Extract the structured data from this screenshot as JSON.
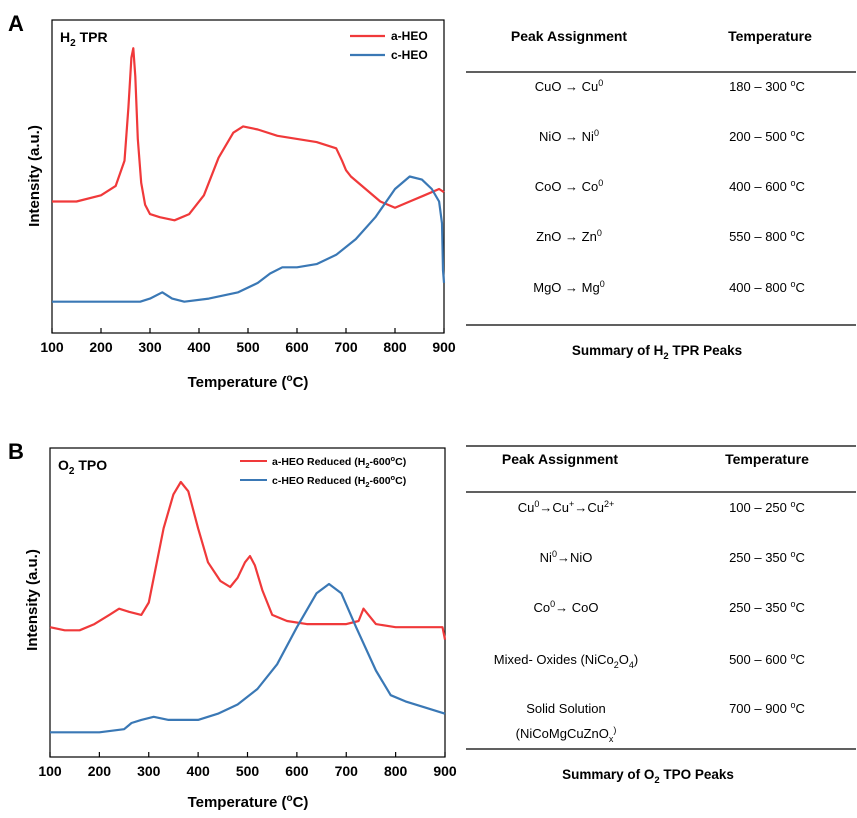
{
  "panels": {
    "A": {
      "letter": "A",
      "plot_title": {
        "main": "H",
        "sub": "2",
        "rest": " TPR"
      },
      "caption": {
        "pre": "Summary of H",
        "sub": "2",
        "post": " TPR Peaks"
      }
    },
    "B": {
      "letter": "B",
      "plot_title": {
        "main": "O",
        "sub": "2",
        "rest": " TPO"
      },
      "caption": {
        "pre": "Summary of O",
        "sub": "2",
        "post": " TPO Peaks"
      }
    }
  },
  "axes": {
    "ylabel": "Intensity (a.u.)",
    "xlabel": {
      "pre": "Temperature (",
      "sup": "o",
      "post": "C)"
    }
  },
  "tables": {
    "header": {
      "assignment": "Peak Assignment",
      "temperature": "Temperature"
    },
    "A": [
      {
        "assignment": [
          {
            "t": "CuO → Cu"
          },
          {
            "t": "0",
            "s": "sup"
          }
        ],
        "temperature": [
          {
            "t": "180 – 300 "
          },
          {
            "t": "o",
            "s": "sup"
          },
          {
            "t": "C"
          }
        ]
      },
      {
        "assignment": [
          {
            "t": "NiO → Ni"
          },
          {
            "t": "0",
            "s": "sup"
          }
        ],
        "temperature": [
          {
            "t": "200 – 500 "
          },
          {
            "t": "o",
            "s": "sup"
          },
          {
            "t": "C"
          }
        ]
      },
      {
        "assignment": [
          {
            "t": "CoO → Co"
          },
          {
            "t": "0",
            "s": "sup"
          }
        ],
        "temperature": [
          {
            "t": "400 – 600 "
          },
          {
            "t": "o",
            "s": "sup"
          },
          {
            "t": "C"
          }
        ]
      },
      {
        "assignment": [
          {
            "t": "ZnO → Zn"
          },
          {
            "t": "0",
            "s": "sup"
          }
        ],
        "temperature": [
          {
            "t": "550 – 800 "
          },
          {
            "t": "o",
            "s": "sup"
          },
          {
            "t": "C"
          }
        ]
      },
      {
        "assignment": [
          {
            "t": "MgO → Mg"
          },
          {
            "t": "0",
            "s": "sup"
          }
        ],
        "temperature": [
          {
            "t": "400 – 800 "
          },
          {
            "t": "o",
            "s": "sup"
          },
          {
            "t": "C"
          }
        ]
      }
    ],
    "B": [
      {
        "assignment": [
          {
            "t": "Cu"
          },
          {
            "t": "0",
            "s": "sup"
          },
          {
            "t": "→Cu"
          },
          {
            "t": "+",
            "s": "sup"
          },
          {
            "t": "→Cu"
          },
          {
            "t": "2+",
            "s": "sup"
          }
        ],
        "temperature": [
          {
            "t": "100 – 250 "
          },
          {
            "t": "o",
            "s": "sup"
          },
          {
            "t": "C"
          }
        ]
      },
      {
        "assignment": [
          {
            "t": "Ni"
          },
          {
            "t": "0",
            "s": "sup"
          },
          {
            "t": "→NiO"
          }
        ],
        "temperature": [
          {
            "t": "250 – 350 "
          },
          {
            "t": "o",
            "s": "sup"
          },
          {
            "t": "C"
          }
        ]
      },
      {
        "assignment": [
          {
            "t": "Co"
          },
          {
            "t": "0",
            "s": "sup"
          },
          {
            "t": "→ CoO"
          }
        ],
        "temperature": [
          {
            "t": "250 – 350 "
          },
          {
            "t": "o",
            "s": "sup"
          },
          {
            "t": "C"
          }
        ]
      },
      {
        "assignment": [
          {
            "t": "Mixed- Oxides (NiCo"
          },
          {
            "t": "2",
            "s": "sub"
          },
          {
            "t": "O"
          },
          {
            "t": "4",
            "s": "sub"
          },
          {
            "t": ")"
          }
        ],
        "temperature": [
          {
            "t": "500 – 600 "
          },
          {
            "t": "o",
            "s": "sup"
          },
          {
            "t": "C"
          }
        ]
      },
      {
        "assignment": [
          {
            "t": "Solid Solution"
          }
        ],
        "assignment2": [
          {
            "t": "(NiCoMgCuZnO"
          },
          {
            "t": "x",
            "s": "sub"
          },
          {
            "t": ")",
            "s": "sup"
          }
        ],
        "temperature": [
          {
            "t": "700 – 900 "
          },
          {
            "t": "o",
            "s": "sup"
          },
          {
            "t": "C"
          }
        ]
      }
    ]
  },
  "colors": {
    "a_series": "#f0393a",
    "c_series": "#3a78b5"
  },
  "chart_data": [
    {
      "type": "line",
      "title": "H2 TPR",
      "xlabel": "Temperature (oC)",
      "ylabel": "Intensity (a.u.)",
      "xlim": [
        100,
        900
      ],
      "x_ticks": [
        100,
        200,
        300,
        400,
        500,
        600,
        700,
        800,
        900
      ],
      "y_ticks_shown": false,
      "legend_position": "top-right",
      "series": [
        {
          "name": "a-HEO",
          "color": "#f0393a",
          "x": [
            100,
            150,
            200,
            230,
            248,
            256,
            262,
            266,
            270,
            275,
            282,
            290,
            300,
            320,
            350,
            380,
            410,
            440,
            470,
            490,
            520,
            560,
            600,
            640,
            680,
            692,
            700,
            710,
            740,
            770,
            800,
            830,
            860,
            890,
            900
          ],
          "y": [
            0.42,
            0.42,
            0.44,
            0.47,
            0.55,
            0.72,
            0.88,
            0.91,
            0.82,
            0.62,
            0.48,
            0.41,
            0.38,
            0.37,
            0.36,
            0.38,
            0.44,
            0.56,
            0.64,
            0.66,
            0.65,
            0.63,
            0.62,
            0.61,
            0.59,
            0.55,
            0.52,
            0.5,
            0.46,
            0.42,
            0.4,
            0.42,
            0.44,
            0.46,
            0.45
          ]
        },
        {
          "name": "c-HEO",
          "color": "#3a78b5",
          "x": [
            100,
            200,
            280,
            300,
            325,
            345,
            370,
            420,
            480,
            520,
            545,
            570,
            600,
            640,
            680,
            720,
            760,
            800,
            830,
            855,
            875,
            890,
            896,
            898,
            900
          ],
          "y": [
            0.1,
            0.1,
            0.1,
            0.11,
            0.13,
            0.11,
            0.1,
            0.11,
            0.13,
            0.16,
            0.19,
            0.21,
            0.21,
            0.22,
            0.25,
            0.3,
            0.37,
            0.46,
            0.5,
            0.49,
            0.46,
            0.42,
            0.35,
            0.2,
            0.16
          ]
        }
      ]
    },
    {
      "type": "line",
      "title": "O2 TPO",
      "xlabel": "Temperature (oC)",
      "ylabel": "Intensity (a.u.)",
      "xlim": [
        100,
        900
      ],
      "x_ticks": [
        100,
        200,
        300,
        400,
        500,
        600,
        700,
        800,
        900
      ],
      "y_ticks_shown": false,
      "legend_position": "top-right",
      "series": [
        {
          "name": "a-HEO Reduced (H2-600oC)",
          "color": "#f0393a",
          "x": [
            100,
            130,
            160,
            190,
            220,
            240,
            260,
            285,
            300,
            315,
            330,
            350,
            365,
            380,
            400,
            420,
            445,
            465,
            480,
            495,
            505,
            515,
            530,
            550,
            580,
            620,
            660,
            700,
            725,
            735,
            745,
            760,
            800,
            850,
            895,
            900
          ],
          "y": [
            0.42,
            0.41,
            0.41,
            0.43,
            0.46,
            0.48,
            0.47,
            0.46,
            0.5,
            0.62,
            0.74,
            0.85,
            0.89,
            0.86,
            0.74,
            0.63,
            0.57,
            0.55,
            0.58,
            0.63,
            0.65,
            0.62,
            0.54,
            0.46,
            0.44,
            0.43,
            0.43,
            0.43,
            0.44,
            0.48,
            0.46,
            0.43,
            0.42,
            0.42,
            0.42,
            0.38
          ]
        },
        {
          "name": "c-HEO Reduced (H2-600oC)",
          "color": "#3a78b5",
          "x": [
            100,
            150,
            200,
            250,
            265,
            285,
            310,
            340,
            370,
            400,
            440,
            480,
            520,
            560,
            600,
            640,
            665,
            690,
            720,
            760,
            790,
            820,
            860,
            900
          ],
          "y": [
            0.08,
            0.08,
            0.08,
            0.09,
            0.11,
            0.12,
            0.13,
            0.12,
            0.12,
            0.12,
            0.14,
            0.17,
            0.22,
            0.3,
            0.42,
            0.53,
            0.56,
            0.53,
            0.42,
            0.28,
            0.2,
            0.18,
            0.16,
            0.14
          ]
        }
      ]
    }
  ]
}
